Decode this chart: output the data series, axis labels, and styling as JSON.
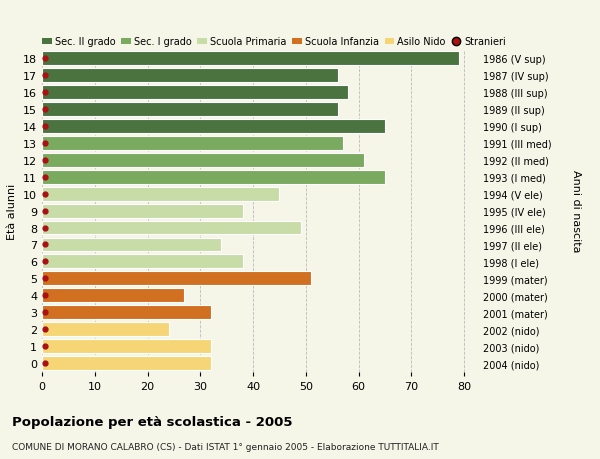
{
  "ages": [
    18,
    17,
    16,
    15,
    14,
    13,
    12,
    11,
    10,
    9,
    8,
    7,
    6,
    5,
    4,
    3,
    2,
    1,
    0
  ],
  "values": [
    79,
    56,
    58,
    56,
    65,
    57,
    61,
    65,
    45,
    38,
    49,
    34,
    38,
    51,
    27,
    32,
    24,
    32,
    32
  ],
  "years": [
    "1986 (V sup)",
    "1987 (IV sup)",
    "1988 (III sup)",
    "1989 (II sup)",
    "1990 (I sup)",
    "1991 (III med)",
    "1992 (II med)",
    "1993 (I med)",
    "1994 (V ele)",
    "1995 (IV ele)",
    "1996 (III ele)",
    "1997 (II ele)",
    "1998 (I ele)",
    "1999 (mater)",
    "2000 (mater)",
    "2001 (mater)",
    "2002 (nido)",
    "2003 (nido)",
    "2004 (nido)"
  ],
  "sec2_ages": [
    18,
    17,
    16,
    15,
    14
  ],
  "sec2_color": "#4a7340",
  "sec1_ages": [
    13,
    12,
    11
  ],
  "sec1_color": "#7aaa5f",
  "primaria_ages": [
    10,
    9,
    8,
    7,
    6
  ],
  "primaria_color": "#c8dca8",
  "infanzia_ages": [
    5,
    4,
    3
  ],
  "infanzia_color": "#d07020",
  "nido_ages": [
    2,
    1,
    0
  ],
  "nido_color": "#f5d575",
  "stranieri_color": "#aa1111",
  "legend_labels": [
    "Sec. II grado",
    "Sec. I grado",
    "Scuola Primaria",
    "Scuola Infanzia",
    "Asilo Nido",
    "Stranieri"
  ],
  "ylabel": "Età alunni",
  "ylabel_right": "Anni di nascita",
  "title": "Popolazione per età scolastica - 2005",
  "subtitle": "COMUNE DI MORANO CALABRO (CS) - Dati ISTAT 1° gennaio 2005 - Elaborazione TUTTITALIA.IT",
  "xlim": [
    0,
    83
  ],
  "background_color": "#f5f5e8",
  "bar_height": 0.82,
  "grid_color": "#bbbbbb"
}
